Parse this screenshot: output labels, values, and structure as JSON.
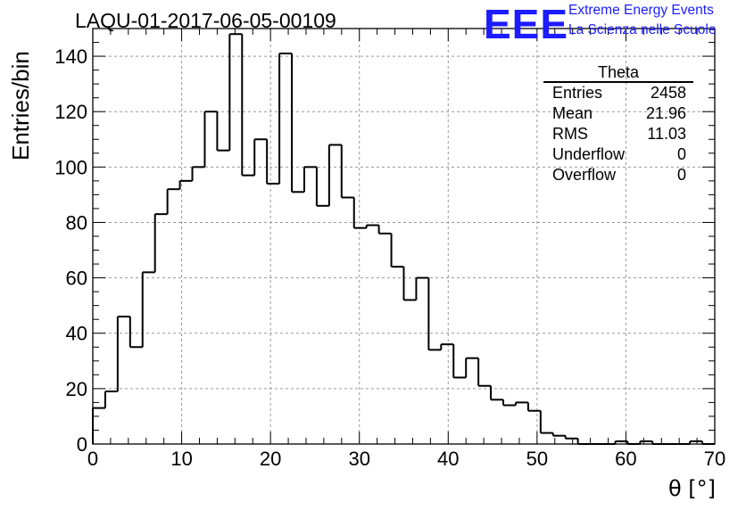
{
  "header": {
    "title": "LAQU-01-2017-06-05-00109",
    "logo_text": "EEE",
    "logo_line1": "Extreme Energy Events",
    "logo_line2": "La Scienza nelle Scuole"
  },
  "stats_box": {
    "title": "Theta",
    "rows": [
      {
        "label": "Entries",
        "value": "2458"
      },
      {
        "label": "Mean",
        "value": "21.96"
      },
      {
        "label": "RMS",
        "value": "11.03"
      },
      {
        "label": "Underflow",
        "value": "0"
      },
      {
        "label": "Overflow",
        "value": "0"
      }
    ]
  },
  "chart_data": {
    "type": "bar",
    "style": "step-histogram",
    "title": "LAQU-01-2017-06-05-00109",
    "xlabel": "θ [°]",
    "ylabel": "Entries/bin",
    "xlim": [
      0,
      70
    ],
    "ylim": [
      0,
      150
    ],
    "grid": true,
    "bin_width": 1.4,
    "x_ticks": [
      0,
      10,
      20,
      30,
      40,
      50,
      60,
      70
    ],
    "y_ticks": [
      0,
      20,
      40,
      60,
      80,
      100,
      120,
      140
    ],
    "bin_edges_start": 0,
    "values": [
      13,
      19,
      46,
      35,
      62,
      83,
      92,
      95,
      100,
      120,
      106,
      148,
      97,
      110,
      94,
      141,
      91,
      100,
      86,
      108,
      89,
      78,
      79,
      76,
      64,
      52,
      60,
      34,
      36,
      24,
      31,
      21,
      16,
      14,
      15,
      12,
      4,
      3,
      2,
      0,
      0,
      0,
      1,
      0,
      1,
      0,
      0,
      0,
      1,
      0
    ]
  }
}
